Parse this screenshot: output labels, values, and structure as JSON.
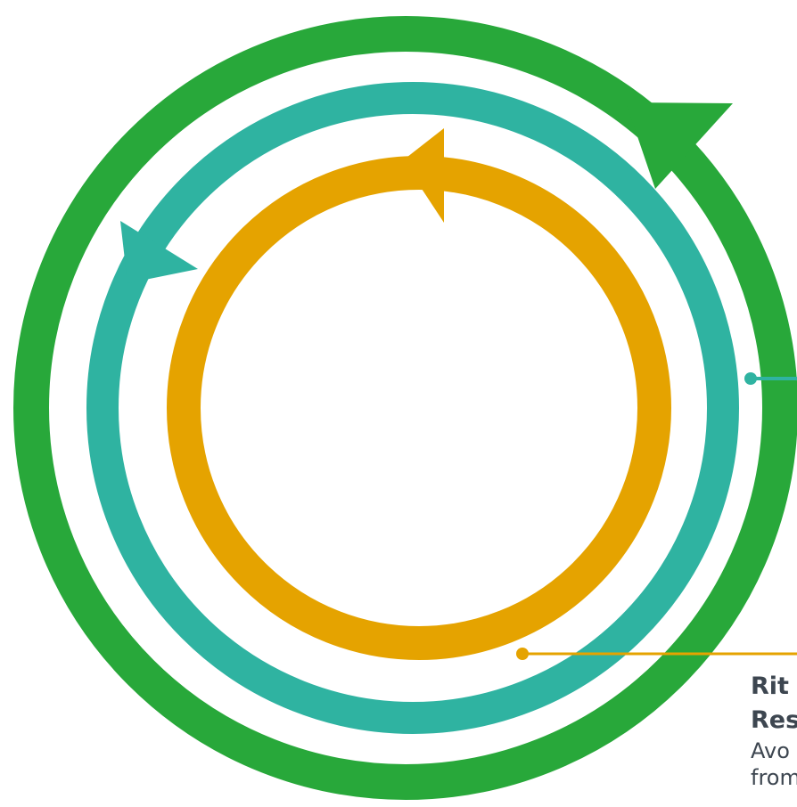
{
  "colors": {
    "outer_ring": "#28a83a",
    "middle_ring": "#2fb3a1",
    "inner_ring": "#e5a300",
    "text": "#3d4650"
  },
  "rings": [
    {
      "name": "outer-ring",
      "color": "#28a83a",
      "arrow_direction": "clockwise"
    },
    {
      "name": "middle-ring",
      "color": "#2fb3a1",
      "arrow_direction": "counter-clockwise"
    },
    {
      "name": "inner-ring",
      "color": "#e5a300",
      "arrow_direction": "counter-clockwise"
    }
  ],
  "callout": {
    "title_line1": "Rit",
    "title_line2": "Res",
    "desc_line1": "Avo",
    "desc_line2": "from"
  }
}
